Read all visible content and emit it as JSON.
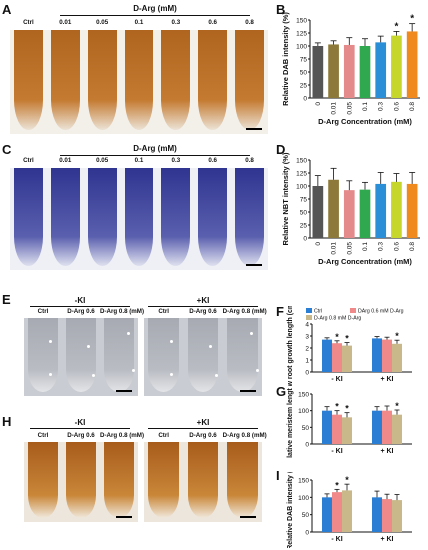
{
  "panels": {
    "A": {
      "letter": "A",
      "title": "D-Arg (mM)",
      "lanes": [
        "Ctrl",
        "0.01",
        "0.05",
        "0.1",
        "0.3",
        "0.6",
        "0.8"
      ]
    },
    "C": {
      "letter": "C",
      "title": "D-Arg (mM)",
      "lanes": [
        "Ctrl",
        "0.01",
        "0.05",
        "0.1",
        "0.3",
        "0.6",
        "0.8"
      ]
    },
    "E": {
      "letter": "E",
      "left_group": "-KI",
      "right_group": "+KI",
      "left_lanes": [
        "Ctrl",
        "D-Arg 0.6",
        "D-Arg 0.8 (mM)"
      ],
      "right_lanes": [
        "Ctrl",
        "D-Arg 0.6",
        "D-Arg 0.8 (mM)"
      ]
    },
    "H": {
      "letter": "H",
      "left_group": "-KI",
      "right_group": "+KI",
      "left_lanes": [
        "Ctrl",
        "D-Arg 0.6",
        "D-Arg 0.8 (mM)"
      ],
      "right_lanes": [
        "Ctrl",
        "D-Arg 0.6",
        "D-Arg 0.8 (mM)"
      ]
    }
  },
  "colors": {
    "dab_stain": "#b86a22",
    "nbt_stain": "#3a3f9a",
    "root_pale": "#d8d9dd",
    "bar_series": [
      "#555555",
      "#8d7a3a",
      "#e58a8a",
      "#2fa84f",
      "#2a8fd6",
      "#c6d62a",
      "#f08a1e"
    ],
    "ki_series": [
      "#2a7fd4",
      "#f08a8a",
      "#c9b98a"
    ]
  },
  "chart_data": [
    {
      "letter": "B",
      "type": "bar",
      "categories": [
        "0",
        "0.01",
        "0.05",
        "0.1",
        "0.3",
        "0.6",
        "0.8"
      ],
      "values": [
        100,
        103,
        102,
        100,
        107,
        120,
        128
      ],
      "errors": [
        6,
        7,
        14,
        14,
        12,
        8,
        15
      ],
      "significant": [
        false,
        false,
        false,
        false,
        false,
        true,
        true
      ],
      "ylabel": "Relative DAB intensity (%)",
      "xlabel": "D-Arg Concentration (mM)",
      "ylim": [
        0,
        150
      ],
      "yticks": [
        "0",
        "25",
        "50",
        "75",
        "100",
        "125",
        "150"
      ]
    },
    {
      "letter": "D",
      "type": "bar",
      "categories": [
        "0",
        "0.01",
        "0.05",
        "0.1",
        "0.3",
        "0.6",
        "0.8"
      ],
      "values": [
        100,
        112,
        92,
        93,
        104,
        108,
        104
      ],
      "errors": [
        20,
        22,
        18,
        14,
        22,
        16,
        22
      ],
      "significant": [
        false,
        false,
        false,
        false,
        false,
        false,
        false
      ],
      "ylabel": "Relative NBT intensity (%)",
      "xlabel": "D-Arg Concentration (mM)",
      "ylim": [
        0,
        150
      ],
      "yticks": [
        "0",
        "25",
        "50",
        "75",
        "100",
        "125",
        "150"
      ]
    },
    {
      "letter": "F",
      "type": "bar",
      "legend": [
        "Ctrl",
        "DArg 0.6 mM D-Arg",
        "D-Arg 0.8 mM D-Arg"
      ],
      "categories": [
        "- KI",
        "+ KI"
      ],
      "series": [
        {
          "name": "Ctrl",
          "values": [
            2.7,
            2.8
          ],
          "errors": [
            0.15,
            0.15
          ]
        },
        {
          "name": "DArg 0.6 mM D-Arg",
          "values": [
            2.4,
            2.7
          ],
          "errors": [
            0.2,
            0.2
          ]
        },
        {
          "name": "D-Arg 0.8 mM D-Arg",
          "values": [
            2.2,
            2.35
          ],
          "errors": [
            0.25,
            0.3
          ]
        }
      ],
      "significance": [
        [
          false,
          true,
          true
        ],
        [
          false,
          false,
          true
        ]
      ],
      "ylabel": "New root growth length (cm)",
      "ylim": [
        0,
        4
      ],
      "yticks": [
        "0",
        "1",
        "2",
        "3",
        "4"
      ]
    },
    {
      "letter": "G",
      "type": "bar",
      "categories": [
        "- KI",
        "+ KI"
      ],
      "series": [
        {
          "name": "Ctrl",
          "values": [
            100,
            100
          ],
          "errors": [
            12,
            12
          ]
        },
        {
          "name": "DArg 0.6 mM D-Arg",
          "values": [
            88,
            100
          ],
          "errors": [
            12,
            14
          ]
        },
        {
          "name": "D-Arg 0.8 mM D-Arg",
          "values": [
            80,
            88
          ],
          "errors": [
            14,
            14
          ]
        }
      ],
      "significance": [
        [
          false,
          true,
          true
        ],
        [
          false,
          false,
          true
        ]
      ],
      "ylabel": "Relative meristem length (%)",
      "ylim": [
        0,
        150
      ],
      "yticks": [
        "0",
        "50",
        "100",
        "150"
      ]
    },
    {
      "letter": "I",
      "type": "bar",
      "categories": [
        "- KI",
        "+ KI"
      ],
      "series": [
        {
          "name": "Ctrl",
          "values": [
            100,
            100
          ],
          "errors": [
            10,
            18
          ]
        },
        {
          "name": "DArg 0.6 mM D-Arg",
          "values": [
            115,
            95
          ],
          "errors": [
            8,
            14
          ]
        },
        {
          "name": "D-Arg 0.8 mM D-Arg",
          "values": [
            120,
            92
          ],
          "errors": [
            18,
            16
          ]
        }
      ],
      "significance": [
        [
          false,
          true,
          true
        ],
        [
          false,
          false,
          false
        ]
      ],
      "ylabel": "Relative DAB intensity (%)",
      "ylim": [
        0,
        150
      ],
      "yticks": [
        "0",
        "50",
        "100",
        "150"
      ]
    }
  ]
}
